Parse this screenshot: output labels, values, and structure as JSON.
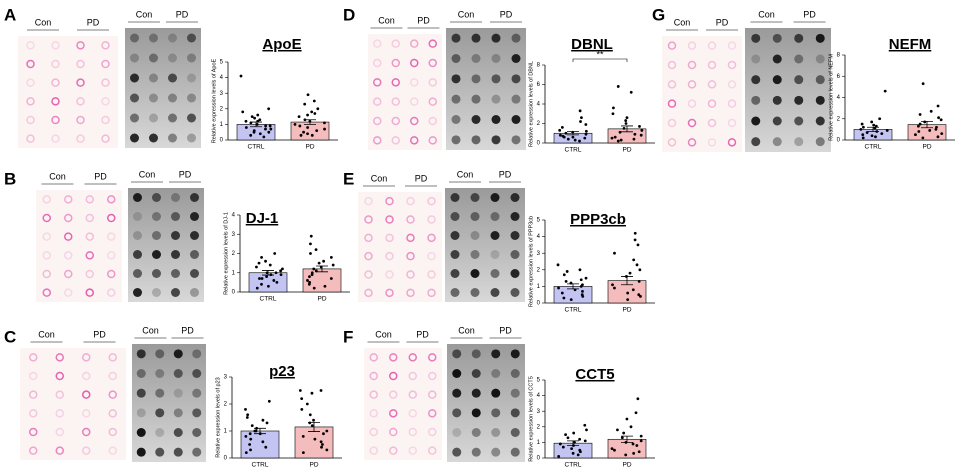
{
  "chart_data": [
    {
      "type": "bar",
      "panel": "A",
      "groups": [
        "Con",
        "PD"
      ],
      "title": "ApoE",
      "y_label": "Relative expression levels of ApoE",
      "categories": [
        "CTRL",
        "PD"
      ],
      "values": [
        1.0,
        1.15
      ],
      "errors": [
        0.15,
        0.15
      ],
      "colors": [
        "#c4c4f2",
        "#f4bcbc"
      ],
      "points": [
        [
          4.1,
          2.0,
          1.8,
          1.6,
          1.5,
          1.4,
          1.3,
          1.2,
          1.1,
          1.0,
          0.9,
          0.9,
          0.8,
          0.7,
          0.7,
          0.6,
          0.5,
          0.5,
          0.4,
          0.3,
          0.2,
          1.2
        ],
        [
          2.9,
          2.5,
          2.3,
          2.0,
          1.8,
          1.7,
          1.6,
          1.5,
          1.3,
          1.2,
          1.0,
          0.9,
          0.8,
          0.7,
          0.6,
          0.5,
          0.4,
          0.3,
          0.3,
          1.1
        ]
      ],
      "ylim": [
        0,
        5
      ],
      "yticks": [
        0,
        1,
        2,
        3,
        4,
        5
      ]
    },
    {
      "type": "bar",
      "panel": "B",
      "groups": [
        "Con",
        "PD"
      ],
      "title": "DJ-1",
      "y_label": "Relative expression levels of DJ-1",
      "categories": [
        "CTRL",
        "PD"
      ],
      "values": [
        1.0,
        1.2
      ],
      "errors": [
        0.12,
        0.15
      ],
      "colors": [
        "#c4c4f2",
        "#f4bcbc"
      ],
      "points": [
        [
          2.0,
          1.8,
          1.6,
          1.5,
          1.4,
          1.2,
          1.1,
          1.0,
          1.0,
          0.9,
          0.9,
          0.8,
          0.7,
          0.6,
          0.5,
          0.4,
          0.3,
          0.2,
          1.3,
          0.7
        ],
        [
          2.9,
          2.5,
          2.2,
          2.0,
          1.8,
          1.6,
          1.5,
          1.4,
          1.3,
          1.2,
          1.1,
          1.0,
          0.9,
          0.8,
          0.7,
          0.6,
          0.5,
          0.4,
          0.3,
          0.2
        ]
      ],
      "ylim": [
        0,
        4
      ],
      "yticks": [
        0,
        1,
        2,
        3,
        4
      ]
    },
    {
      "type": "bar",
      "panel": "C",
      "groups": [
        "Con",
        "PD"
      ],
      "title": "p23",
      "y_label": "Relative expression levels of p23",
      "categories": [
        "CTRL",
        "PD"
      ],
      "values": [
        1.0,
        1.15
      ],
      "errors": [
        0.1,
        0.17
      ],
      "colors": [
        "#c4c4f2",
        "#f4bcbc"
      ],
      "points": [
        [
          2.1,
          1.8,
          1.6,
          1.5,
          1.4,
          1.2,
          1.1,
          1.0,
          1.0,
          0.9,
          0.9,
          0.8,
          0.7,
          0.6,
          0.5,
          0.4,
          0.3,
          0.2,
          1.3
        ],
        [
          2.5,
          2.5,
          2.4,
          2.2,
          2.0,
          1.8,
          1.6,
          1.4,
          1.3,
          1.2,
          1.0,
          0.9,
          0.8,
          0.7,
          0.6,
          0.5,
          0.4,
          0.3,
          0.2
        ]
      ],
      "ylim": [
        0,
        3
      ],
      "yticks": [
        0,
        1,
        2,
        3
      ]
    },
    {
      "type": "bar",
      "panel": "D",
      "groups": [
        "Con",
        "PD"
      ],
      "title": "DBNL",
      "y_label": "Relative expression levels of DBNL",
      "annotation": "**",
      "categories": [
        "CTRL",
        "PD"
      ],
      "values": [
        1.0,
        1.45
      ],
      "errors": [
        0.17,
        0.3
      ],
      "colors": [
        "#c4c4f2",
        "#f4bcbc"
      ],
      "points": [
        [
          3.3,
          2.6,
          2.2,
          1.9,
          1.6,
          1.3,
          1.1,
          1.0,
          0.9,
          0.8,
          0.7,
          0.6,
          0.5,
          0.4,
          0.3,
          0.2,
          1.2,
          0.6
        ],
        [
          5.8,
          5.2,
          3.6,
          3.0,
          2.6,
          2.3,
          2.0,
          1.7,
          1.5,
          1.3,
          1.1,
          0.9,
          0.8,
          0.6,
          0.5,
          0.4,
          0.3,
          0.2
        ]
      ],
      "ylim": [
        0,
        8
      ],
      "yticks": [
        0,
        2,
        4,
        6,
        8
      ]
    },
    {
      "type": "bar",
      "panel": "E",
      "groups": [
        "Con",
        "PD"
      ],
      "title": "PPP3cb",
      "y_label": "Relative expression levels of PPP3cb",
      "categories": [
        "CTRL",
        "PD"
      ],
      "values": [
        1.0,
        1.35
      ],
      "errors": [
        0.15,
        0.25
      ],
      "colors": [
        "#c4c4f2",
        "#f4bcbc"
      ],
      "points": [
        [
          2.3,
          2.0,
          1.9,
          1.7,
          1.5,
          1.3,
          1.2,
          1.1,
          1.0,
          0.9,
          0.8,
          0.7,
          0.6,
          0.5,
          0.4,
          0.3,
          0.2,
          1.4
        ],
        [
          4.2,
          3.8,
          3.5,
          3.0,
          2.6,
          2.3,
          2.0,
          1.8,
          1.6,
          1.3,
          1.1,
          0.9,
          0.8,
          0.6,
          0.5,
          0.4,
          0.2
        ]
      ],
      "ylim": [
        0,
        5
      ],
      "yticks": [
        0,
        1,
        2,
        3,
        4,
        5
      ]
    },
    {
      "type": "bar",
      "panel": "F",
      "groups": [
        "Con",
        "PD"
      ],
      "title": "CCT5",
      "y_label": "Relative expression levels of CCT5",
      "categories": [
        "CTRL",
        "PD"
      ],
      "values": [
        0.95,
        1.2
      ],
      "errors": [
        0.15,
        0.2
      ],
      "colors": [
        "#c4c4f2",
        "#f4bcbc"
      ],
      "points": [
        [
          2.1,
          1.8,
          1.6,
          1.5,
          1.3,
          1.1,
          1.0,
          0.9,
          0.8,
          0.7,
          0.6,
          0.5,
          0.4,
          0.3,
          0.2,
          0.1,
          1.2
        ],
        [
          3.8,
          2.9,
          2.5,
          2.0,
          1.8,
          1.6,
          1.4,
          1.3,
          1.1,
          1.0,
          0.9,
          0.8,
          0.6,
          0.5,
          0.4,
          0.3,
          0.2
        ]
      ],
      "ylim": [
        0,
        5
      ],
      "yticks": [
        0,
        1,
        2,
        3,
        4,
        5
      ]
    },
    {
      "type": "bar",
      "panel": "G",
      "groups": [
        "Con",
        "PD"
      ],
      "title": "NEFM",
      "y_label": "Relative expression levels of NEFM",
      "categories": [
        "CTRL",
        "PD"
      ],
      "values": [
        1.0,
        1.45
      ],
      "errors": [
        0.2,
        0.3
      ],
      "colors": [
        "#c4c4f2",
        "#f4bcbc"
      ],
      "points": [
        [
          4.6,
          2.0,
          1.7,
          1.5,
          1.3,
          1.2,
          1.1,
          1.0,
          0.9,
          0.8,
          0.7,
          0.6,
          0.5,
          0.4,
          0.3,
          0.2,
          1.4
        ],
        [
          5.3,
          3.2,
          2.7,
          2.4,
          2.1,
          1.9,
          1.7,
          1.5,
          1.3,
          1.2,
          1.0,
          0.9,
          0.8,
          0.6,
          0.5,
          0.3,
          0.2
        ]
      ],
      "ylim": [
        0,
        8
      ],
      "yticks": [
        0,
        2,
        4,
        6,
        8
      ]
    }
  ]
}
